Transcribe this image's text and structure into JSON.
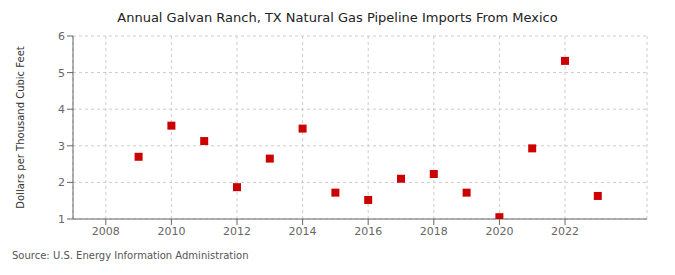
{
  "chart_data": {
    "type": "scatter",
    "title": "Annual Galvan Ranch, TX Natural Gas Pipeline Imports From Mexico",
    "ylabel": "Dollars per Thousand Cubic Feet",
    "annotation": "Source: U.S. Energy Information Administration",
    "x": [
      2009,
      2010,
      2011,
      2012,
      2013,
      2014,
      2015,
      2016,
      2017,
      2018,
      2019,
      2020,
      2021,
      2022,
      2023
    ],
    "values": [
      2.7,
      3.55,
      3.13,
      1.87,
      2.65,
      3.47,
      1.72,
      1.52,
      2.1,
      2.23,
      1.72,
      1.05,
      2.93,
      5.32,
      1.63
    ],
    "color": "#cc0000",
    "marker": "square",
    "xlim": [
      2007.0,
      2024.5
    ],
    "ylim": [
      1,
      6
    ],
    "xticks": [
      2008,
      2010,
      2012,
      2014,
      2016,
      2018,
      2020,
      2022
    ],
    "yticks": [
      1,
      2,
      3,
      4,
      5,
      6
    ],
    "grid": true
  }
}
